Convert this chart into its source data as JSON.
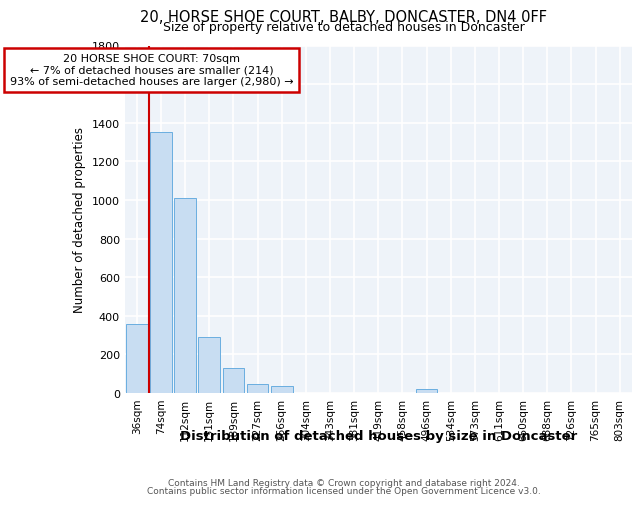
{
  "title": "20, HORSE SHOE COURT, BALBY, DONCASTER, DN4 0FF",
  "subtitle": "Size of property relative to detached houses in Doncaster",
  "xlabel": "Distribution of detached houses by size in Doncaster",
  "ylabel": "Number of detached properties",
  "categories": [
    "36sqm",
    "74sqm",
    "112sqm",
    "151sqm",
    "189sqm",
    "227sqm",
    "266sqm",
    "304sqm",
    "343sqm",
    "381sqm",
    "419sqm",
    "458sqm",
    "496sqm",
    "534sqm",
    "573sqm",
    "611sqm",
    "650sqm",
    "688sqm",
    "726sqm",
    "765sqm",
    "803sqm"
  ],
  "values": [
    360,
    1350,
    1010,
    290,
    130,
    45,
    35,
    0,
    0,
    0,
    0,
    0,
    20,
    0,
    0,
    0,
    0,
    0,
    0,
    0,
    0
  ],
  "bar_color": "#c8ddf2",
  "bar_edge_color": "#6aaee0",
  "bg_color": "#eef3f9",
  "annotation_line1": "20 HORSE SHOE COURT: 70sqm",
  "annotation_line2": "← 7% of detached houses are smaller (214)",
  "annotation_line3": "93% of semi-detached houses are larger (2,980) →",
  "footnote1": "Contains HM Land Registry data © Crown copyright and database right 2024.",
  "footnote2": "Contains public sector information licensed under the Open Government Licence v3.0.",
  "ylim": [
    0,
    1800
  ],
  "yticks": [
    0,
    200,
    400,
    600,
    800,
    1000,
    1200,
    1400,
    1600,
    1800
  ],
  "vline_color": "#cc0000",
  "ann_box_color": "#cc0000"
}
